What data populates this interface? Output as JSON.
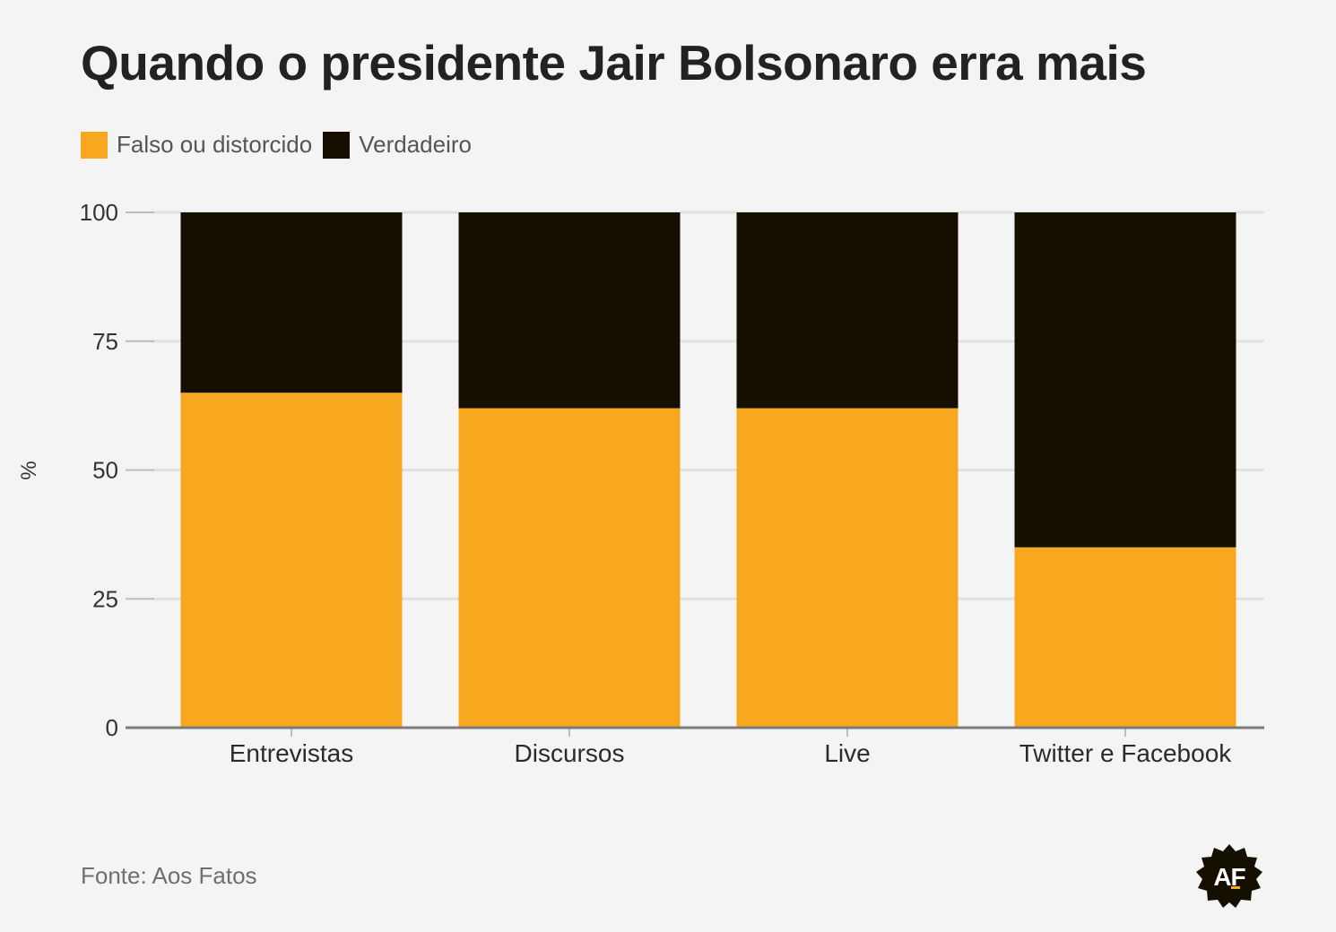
{
  "title": "Quando o presidente Jair Bolsonaro erra mais",
  "legend": [
    {
      "label": "Falso ou distorcido",
      "color": "#f8a81e"
    },
    {
      "label": "Verdadeiro",
      "color": "#150f00"
    }
  ],
  "source": "Fonte: Aos Fatos",
  "logo": {
    "text": "AF",
    "icon": "aos-fatos-logo-icon"
  },
  "chart_data": {
    "type": "bar",
    "stacked": true,
    "categories": [
      "Entrevistas",
      "Discursos",
      "Live",
      "Twitter e Facebook"
    ],
    "series": [
      {
        "name": "Falso ou distorcido",
        "values": [
          65,
          62,
          62,
          35
        ],
        "color": "#f8a81e"
      },
      {
        "name": "Verdadeiro",
        "values": [
          35,
          38,
          38,
          65
        ],
        "color": "#150f00"
      }
    ],
    "ylabel": "%",
    "ylim": [
      0,
      100
    ],
    "yticks": [
      "0",
      "25",
      "50",
      "75",
      "100"
    ],
    "grid": true,
    "legend_position": "top-left"
  }
}
